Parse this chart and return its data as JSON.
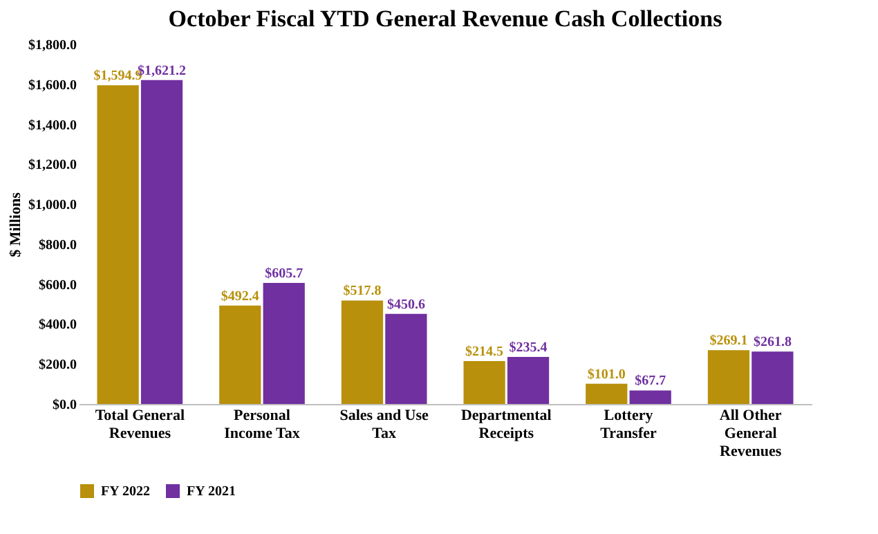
{
  "chart_data": {
    "type": "bar",
    "title": "October Fiscal YTD General Revenue Cash Collections",
    "ylabel": "$ Millions",
    "categories": [
      "Total General Revenues",
      "Personal Income Tax",
      "Sales and Use Tax",
      "Departmental Receipts",
      "Lottery Transfer",
      "All Other General Revenues"
    ],
    "series": [
      {
        "name": "FY 2022",
        "color": "#b8900b",
        "values": [
          1594.9,
          492.4,
          517.8,
          214.5,
          101.0,
          269.1
        ],
        "value_labels": [
          "$1,594.9",
          "$492.4",
          "$517.8",
          "$214.5",
          "$101.0",
          "$269.1"
        ]
      },
      {
        "name": "FY 2021",
        "color": "#7030a0",
        "values": [
          1621.2,
          605.7,
          450.6,
          235.4,
          67.7,
          261.8
        ],
        "value_labels": [
          "$1,621.2",
          "$605.7",
          "$450.6",
          "$235.4",
          "$67.7",
          "$261.8"
        ]
      }
    ],
    "ylim": [
      0,
      1800
    ],
    "yticks": [
      {
        "value": 0,
        "label": "$0.0"
      },
      {
        "value": 200,
        "label": "$200.0"
      },
      {
        "value": 400,
        "label": "$400.0"
      },
      {
        "value": 600,
        "label": "$600.0"
      },
      {
        "value": 800,
        "label": "$800.0"
      },
      {
        "value": 1000,
        "label": "$1,000.0"
      },
      {
        "value": 1200,
        "label": "$1,200.0"
      },
      {
        "value": 1400,
        "label": "$1,400.0"
      },
      {
        "value": 1600,
        "label": "$1,600.0"
      },
      {
        "value": 1800,
        "label": "$1,800.0"
      }
    ],
    "grid": false,
    "legend": "bottom"
  }
}
